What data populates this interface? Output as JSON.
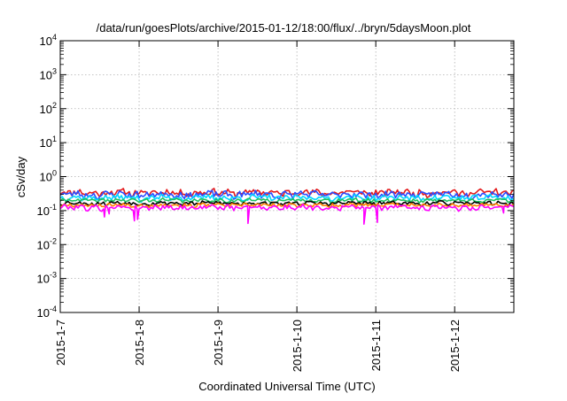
{
  "chart_data": {
    "type": "line",
    "title": "/data/run/goesPlots/archive/2015-01-12/18:00/flux/../bryn/5daysMoon.plot",
    "xlabel": "Coordinated Universal Time (UTC)",
    "ylabel": "cSv/day",
    "yscale": "log",
    "ylim": [
      0.0001,
      10000
    ],
    "xlim": [
      "2015-1-7",
      "2015-1-12 18:00"
    ],
    "x_ticks": [
      "2015-1-7",
      "2015-1-8",
      "2015-1-9",
      "2015-1-10",
      "2015-1-11",
      "2015-1-12"
    ],
    "y_ticks": [
      {
        "base": "10",
        "exp": "-4"
      },
      {
        "base": "10",
        "exp": "-3"
      },
      {
        "base": "10",
        "exp": "-2"
      },
      {
        "base": "10",
        "exp": "-1"
      },
      {
        "base": "10",
        "exp": "0"
      },
      {
        "base": "10",
        "exp": "1"
      },
      {
        "base": "10",
        "exp": "2"
      },
      {
        "base": "10",
        "exp": "3"
      },
      {
        "base": "10",
        "exp": "4"
      }
    ],
    "grid": true,
    "series": [
      {
        "color": "#e41a1c",
        "level": 0.34,
        "amplitude": 0.09,
        "seed": 11
      },
      {
        "color": "#2b4cff",
        "level": 0.3,
        "amplitude": 0.08,
        "seed": 23
      },
      {
        "color": "#00d8ff",
        "level": 0.24,
        "amplitude": 0.05,
        "seed": 37
      },
      {
        "color": "#20c060",
        "level": 0.2,
        "amplitude": 0.03,
        "seed": 41
      },
      {
        "color": "#000000",
        "level": 0.165,
        "amplitude": 0.025,
        "seed": 53
      },
      {
        "color": "#ff7f00",
        "level": 0.145,
        "amplitude": 0.02,
        "seed": 67
      },
      {
        "color": "#ff00ff",
        "level": 0.125,
        "amplitude": 0.025,
        "seed": 79,
        "dips": [
          {
            "x": 0.56,
            "y": 0.065
          },
          {
            "x": 0.62,
            "y": 0.08
          },
          {
            "x": 0.94,
            "y": 0.05
          },
          {
            "x": 0.98,
            "y": 0.055
          },
          {
            "x": 2.38,
            "y": 0.042
          },
          {
            "x": 3.85,
            "y": 0.04
          },
          {
            "x": 4.02,
            "y": 0.045
          },
          {
            "x": 5.62,
            "y": 0.085
          }
        ]
      }
    ]
  }
}
